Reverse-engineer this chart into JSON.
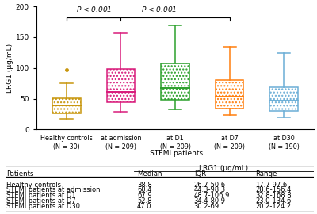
{
  "groups": [
    {
      "label": "Healthy controls\n(N = 30)",
      "color": "#C8960C",
      "median": 38.8,
      "q1": 26.7,
      "q3": 50.6,
      "whisker_low": 17.7,
      "whisker_high": 75.0,
      "outliers": [
        97.6
      ]
    },
    {
      "label": "at admission\n(N = 209)",
      "color": "#D81B7B",
      "median": 60.4,
      "q1": 44.3,
      "q3": 98.3,
      "whisker_low": 28.6,
      "whisker_high": 156.4,
      "outliers": []
    },
    {
      "label": "at D1\n(N = 209)",
      "color": "#2CA02C",
      "median": 67.9,
      "q1": 48.7,
      "q3": 106.9,
      "whisker_low": 32.8,
      "whisker_high": 168.8,
      "outliers": []
    },
    {
      "label": "at D7\n(N = 209)",
      "color": "#FF7F0E",
      "median": 52.8,
      "q1": 34.4,
      "q3": 80.9,
      "whisker_low": 23.0,
      "whisker_high": 134.6,
      "outliers": []
    },
    {
      "label": "at D30\n(N = 190)",
      "color": "#6BAED6",
      "median": 47.0,
      "q1": 30.2,
      "q3": 69.1,
      "whisker_low": 20.2,
      "whisker_high": 124.2,
      "outliers": []
    }
  ],
  "ylabel": "LRG1 (μg/mL)",
  "ylim": [
    0,
    200
  ],
  "yticks": [
    0,
    50,
    100,
    150,
    200
  ],
  "stemi_label": "STEMI patients",
  "table_rows": [
    [
      "Healthy controls",
      "38.8",
      "26.7-50.6",
      "17.7-97.6"
    ],
    [
      "STEMI patients at admission",
      "60.4",
      "44.3-98.3",
      "28.6-156.4"
    ],
    [
      "STEMI patients at D1",
      "67.9",
      "48.7-106.9",
      "32.8-168.8"
    ],
    [
      "STEMI patients at D7",
      "52.8",
      "34.4-80.9",
      "23.0-134.6"
    ],
    [
      "STEMI patients at D30",
      "47.0",
      "30.2-69.1",
      "20.2-124.2"
    ]
  ],
  "table_col_headers": [
    "Patients",
    "Median",
    "IQR",
    "Range"
  ],
  "table_span_header": "LRG1 (μg/mL)",
  "bg_color": "#FFFFFF"
}
